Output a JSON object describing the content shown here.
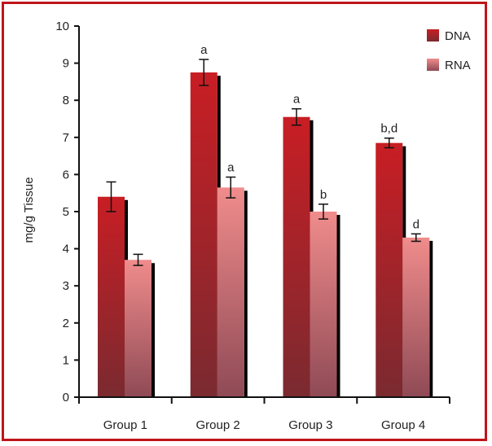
{
  "chart_data": {
    "type": "bar",
    "title": "",
    "xlabel": "",
    "ylabel": "mg/g Tissue",
    "ylim": [
      0,
      10
    ],
    "yticks": [
      0,
      1,
      2,
      3,
      4,
      5,
      6,
      7,
      8,
      9,
      10
    ],
    "categories": [
      "Group 1",
      "Group 2",
      "Group 3",
      "Group 4"
    ],
    "series": [
      {
        "name": "DNA",
        "color": "#b8181f",
        "values": [
          5.4,
          8.75,
          7.55,
          6.85
        ],
        "errors": [
          0.4,
          0.35,
          0.22,
          0.13
        ],
        "annotations": [
          "",
          "a",
          "a",
          "b,d"
        ]
      },
      {
        "name": "RNA",
        "color": "#e57373",
        "values": [
          3.7,
          5.65,
          5.0,
          4.3
        ],
        "errors": [
          0.15,
          0.28,
          0.2,
          0.1
        ],
        "annotations": [
          "",
          "a",
          "b",
          "d"
        ]
      }
    ],
    "legend_position": "top-right",
    "grid": false
  }
}
